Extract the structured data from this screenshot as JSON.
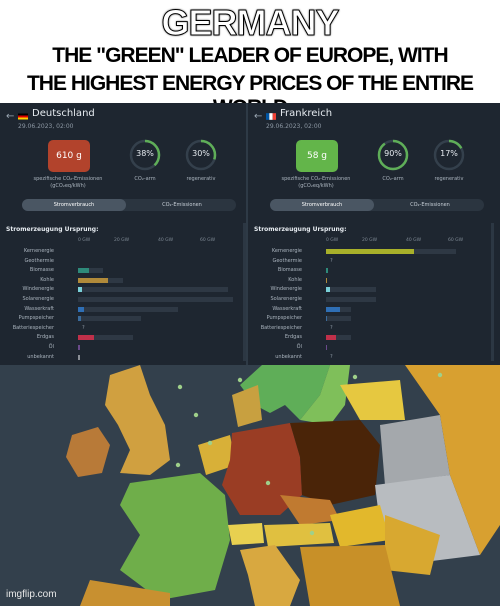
{
  "meme": {
    "title": "GERMANY",
    "subtitle_line1": "THE \"GREEN\" LEADER OF EUROPE, WITH",
    "subtitle_line2": "THE HIGHEST ENERGY PRICES OF THE ENTIRE WORLD"
  },
  "panels": [
    {
      "country": "Deutschland",
      "date": "29.06.2023, 02:00",
      "co2_value": "610 g",
      "co2_color": "#b2432c",
      "co2_free": "38%",
      "co2_free_fraction": 0.38,
      "renewable": "30%",
      "renewable_fraction": 0.3,
      "co2_caption": "spezifische CO₂-Emissionen (gCO₂eq/kWh)",
      "co2free_caption": "CO₂-arm",
      "renewable_caption": "regenerativ",
      "tab_active": "Stromverbrauch",
      "tab_inactive": "CO₂-Emissionen",
      "section_title": "Stromerzeugung Ursprung:",
      "axis": [
        "0 GW",
        "20 GW",
        "40 GW",
        "60 GW"
      ],
      "sources": [
        {
          "label": "Kernenergie",
          "value": 0,
          "color": "#a8b02a"
        },
        {
          "label": "Geothermie",
          "value": 0,
          "color": "#c0392b"
        },
        {
          "label": "Biomasse",
          "value": 4.5,
          "color": "#2e8a7a"
        },
        {
          "label": "Kohle",
          "value": 12,
          "color": "#b08a3a"
        },
        {
          "label": "Windenergie",
          "value": 1.5,
          "color": "#7ad0d8"
        },
        {
          "label": "Solarenergie",
          "value": 0,
          "color": "#f0c040"
        },
        {
          "label": "Wasserkraft",
          "value": 2.2,
          "color": "#2f6fb5"
        },
        {
          "label": "Pumpspeicher",
          "value": 1.2,
          "color": "#3a6a9a"
        },
        {
          "label": "Batteriespeicher",
          "value": 0,
          "color": "#555f6a",
          "unknown": "?"
        },
        {
          "label": "Erdgas",
          "value": 6.5,
          "color": "#c0304a"
        },
        {
          "label": "Öl",
          "value": 0.8,
          "color": "#6a4a8a"
        },
        {
          "label": "unbekannt",
          "value": 0.8,
          "color": "#8a8f96"
        }
      ],
      "track_max": [
        0,
        0,
        10,
        18,
        60,
        62,
        40,
        25,
        0,
        22,
        0,
        0
      ]
    },
    {
      "country": "Frankreich",
      "date": "29.06.2023, 02:00",
      "co2_value": "58 g",
      "co2_color": "#63b54a",
      "co2_free": "90%",
      "co2_free_fraction": 0.9,
      "renewable": "17%",
      "renewable_fraction": 0.17,
      "co2_caption": "spezifische CO₂-Emissionen (gCO₂eq/kWh)",
      "co2free_caption": "CO₂-arm",
      "renewable_caption": "regenerativ",
      "tab_active": "Stromverbrauch",
      "tab_inactive": "CO₂-Emissionen",
      "section_title": "Stromerzeugung Ursprung:",
      "axis": [
        "0 GW",
        "20 GW",
        "40 GW",
        "60 GW"
      ],
      "sources": [
        {
          "label": "Kernenergie",
          "value": 35,
          "color": "#a8b02a"
        },
        {
          "label": "Geothermie",
          "value": 0,
          "color": "#c0392b",
          "unknown": "?"
        },
        {
          "label": "Biomasse",
          "value": 0.8,
          "color": "#2e8a7a"
        },
        {
          "label": "Kohle",
          "value": 0.3,
          "color": "#b08a3a"
        },
        {
          "label": "Windenergie",
          "value": 1.5,
          "color": "#7ad0d8"
        },
        {
          "label": "Solarenergie",
          "value": 0,
          "color": "#f0c040"
        },
        {
          "label": "Wasserkraft",
          "value": 5.5,
          "color": "#2f6fb5"
        },
        {
          "label": "Pumpspeicher",
          "value": 0.5,
          "color": "#3a6a9a"
        },
        {
          "label": "Batteriespeicher",
          "value": 0,
          "color": "#555f6a",
          "unknown": "?"
        },
        {
          "label": "Erdgas",
          "value": 4,
          "color": "#c0304a"
        },
        {
          "label": "Öl",
          "value": 0.5,
          "color": "#6a4a8a"
        },
        {
          "label": "unbekannt",
          "value": 0,
          "color": "#8a8f96",
          "unknown": "?"
        }
      ],
      "track_max": [
        52,
        0,
        0,
        0,
        20,
        20,
        10,
        10,
        0,
        10,
        0,
        0
      ]
    }
  ],
  "watermark": "imgflip.com",
  "map_colors": {
    "sea": "#33404c",
    "germany": "#9a3d24",
    "poland": "#4a2408",
    "france": "#6fae4a",
    "norway": "#5fae58",
    "uk": "#d0a040",
    "belarus": "#a4a8ac"
  }
}
